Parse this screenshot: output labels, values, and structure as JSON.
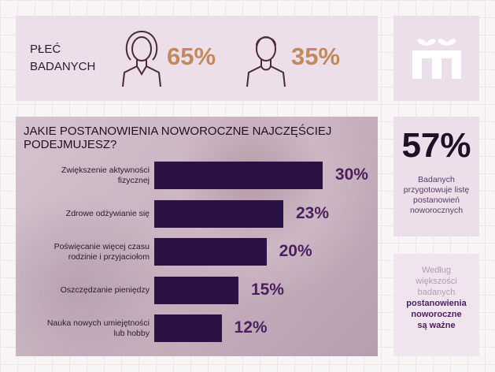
{
  "gender": {
    "title_lines": [
      "PŁEĆ",
      "BADANYCH"
    ],
    "female": {
      "value": 65,
      "label": "65%"
    },
    "male": {
      "value": 35,
      "label": "35%"
    }
  },
  "chart_data": {
    "type": "bar",
    "orientation": "horizontal",
    "title": "JAKIE POSTANOWIENIA NOWOROCZNE NAJCZĘŚCIEJ PODEJMUJESZ?",
    "categories": [
      "Zwiększenie aktywności fizycznej",
      "Zdrowe odżywianie się",
      "Poświęcanie więcej czasu rodzinie i przyjaciołom",
      "Oszczędzanie pieniędzy",
      "Nauka nowych umiejętności lub hobby"
    ],
    "values": [
      30,
      23,
      20,
      15,
      12
    ],
    "value_labels": [
      "30%",
      "23%",
      "20%",
      "15%",
      "12%"
    ],
    "color": "#2a1245"
  },
  "stat": {
    "value": {
      "value": 57,
      "label": "57%"
    },
    "description_lines": [
      "Badanych",
      "przygotowuje listę",
      "postanowień",
      "noworocznych"
    ]
  },
  "conclusion": {
    "light_lines": [
      "Według",
      "większości",
      "badanych"
    ],
    "bold_lines": [
      "postanowienia",
      "noworoczne",
      "są ważne"
    ]
  }
}
